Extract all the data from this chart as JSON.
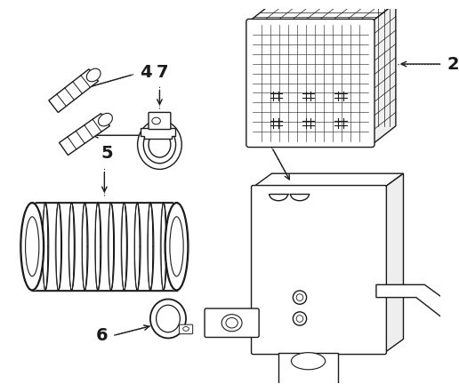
{
  "bg_color": "#ffffff",
  "line_color": "#1a1a1a",
  "fig_width": 5.16,
  "fig_height": 4.41,
  "dpi": 100
}
